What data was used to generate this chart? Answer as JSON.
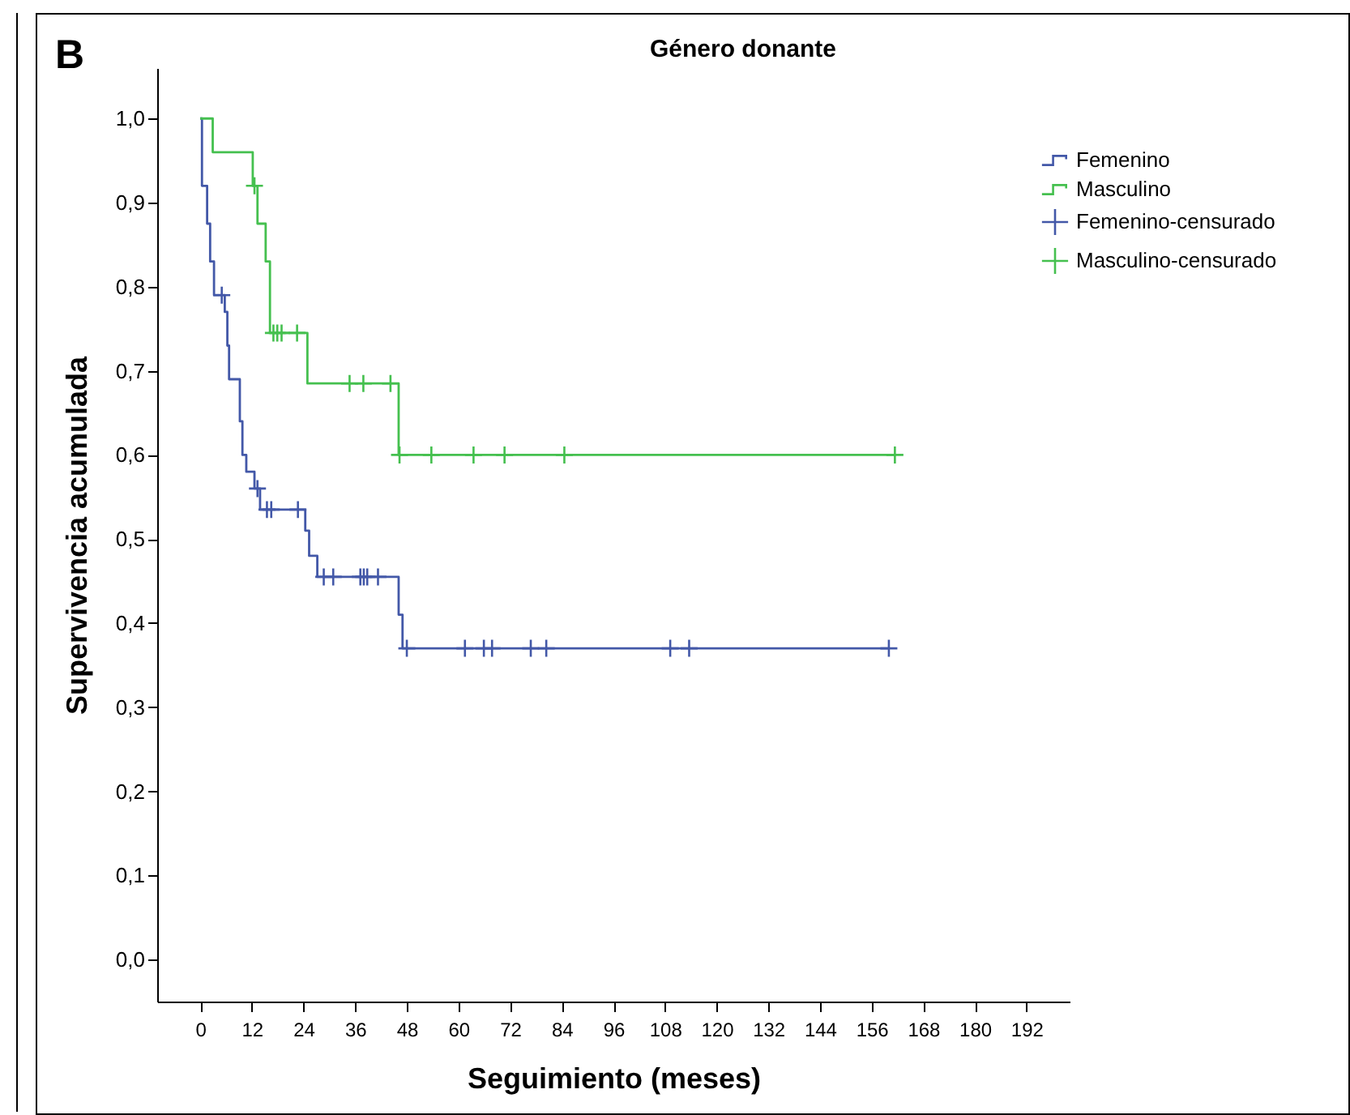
{
  "chart_data": {
    "type": "step",
    "title": "Género donante",
    "xlabel": "Seguimiento (meses)",
    "ylabel": "Supervivencia acumulada",
    "annotations": [
      "B"
    ],
    "xlim": [
      -10,
      202
    ],
    "xticks": [
      0,
      12,
      24,
      36,
      48,
      60,
      72,
      84,
      96,
      108,
      120,
      132,
      144,
      156,
      168,
      180,
      192
    ],
    "ylim": [
      -0.05,
      1.06
    ],
    "yticks": [
      {
        "value": 0,
        "label": "0,0"
      },
      {
        "value": 0.1,
        "label": "0,1"
      },
      {
        "value": 0.2,
        "label": "0,2"
      },
      {
        "value": 0.3,
        "label": "0,3"
      },
      {
        "value": 0.4,
        "label": "0,4"
      },
      {
        "value": 0.5,
        "label": "0,5"
      },
      {
        "value": 0.6,
        "label": "0,6"
      },
      {
        "value": 0.7,
        "label": "0,7"
      },
      {
        "value": 0.8,
        "label": "0,8"
      },
      {
        "value": 0.9,
        "label": "0,9"
      },
      {
        "value": 1,
        "label": "1,0"
      }
    ],
    "grid": false,
    "legend": "top right",
    "line_style": "solid",
    "series": [
      {
        "name": "Femenino",
        "color": "#4358a8",
        "x": [
          0,
          0.4,
          1.6,
          2.3,
          3.2,
          5.7,
          6.3,
          6.7,
          9.2,
          9.8,
          10.7,
          12.6,
          13.9,
          24.4,
          25.3,
          27.2,
          46.1,
          47,
          160
        ],
        "values": [
          1.0,
          0.92,
          0.875,
          0.83,
          0.79,
          0.77,
          0.73,
          0.69,
          0.64,
          0.6,
          0.58,
          0.56,
          0.535,
          0.51,
          0.48,
          0.455,
          0.41,
          0.37,
          0.37
        ]
      },
      {
        "name": "Masculino",
        "color": "#45c04f",
        "x": [
          0,
          2.9,
          12.2,
          13.3,
          15.2,
          16.2,
          24.9,
          46.1,
          161.4
        ],
        "values": [
          1.0,
          0.96,
          0.92,
          0.875,
          0.83,
          0.745,
          0.685,
          0.6,
          0.6
        ]
      },
      {
        "name": "Femenino-censurado",
        "type": "scatter",
        "marker": "cross",
        "color": "#4358a8",
        "x": [
          5,
          13.3,
          15.5,
          16.5,
          22.7,
          28.7,
          30.9,
          37.2,
          38,
          38.8,
          41.3,
          48,
          61.5,
          65.9,
          67.8,
          76.8,
          80.4,
          109.2,
          113.6,
          160
        ],
        "values": [
          0.79,
          0.56,
          0.535,
          0.535,
          0.535,
          0.455,
          0.455,
          0.455,
          0.455,
          0.455,
          0.455,
          0.37,
          0.37,
          0.37,
          0.37,
          0.37,
          0.37,
          0.37,
          0.37,
          0.37
        ]
      },
      {
        "name": "Masculino-censurado",
        "type": "scatter",
        "marker": "cross",
        "color": "#45c04f",
        "x": [
          12.6,
          17,
          17.9,
          18.9,
          22.5,
          34.7,
          37.9,
          44.2,
          46.3,
          53.7,
          63.5,
          70.7,
          84.6,
          161.4
        ],
        "values": [
          0.92,
          0.745,
          0.745,
          0.745,
          0.745,
          0.685,
          0.685,
          0.685,
          0.6,
          0.6,
          0.6,
          0.6,
          0.6,
          0.6
        ]
      }
    ]
  }
}
